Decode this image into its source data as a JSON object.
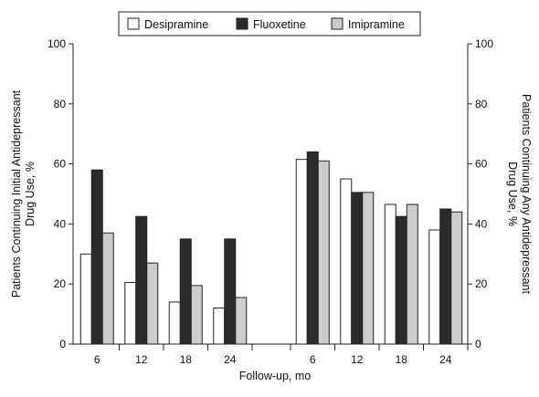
{
  "chart_data": {
    "type": "bar",
    "xlabel": "Follow-up, mo",
    "ylabel_left": [
      "Patients Continuing Initial Antidepressant",
      "Drug Use, %"
    ],
    "ylabel_right": [
      "Patients Continuing Any Antidepressant",
      "Drug Use, %"
    ],
    "ylim": [
      0,
      100
    ],
    "yticks": [
      0,
      20,
      40,
      60,
      80,
      100
    ],
    "legend_position": "top",
    "grid": false,
    "panels": [
      {
        "name": "",
        "categories": [
          "6",
          "12",
          "18",
          "24"
        ],
        "series": [
          {
            "name": "Desipramine",
            "color": "#ffffff",
            "values": [
              30,
              20.5,
              14,
              12
            ]
          },
          {
            "name": "Fluoxetine",
            "color": "#2b2b2b",
            "values": [
              58,
              42.5,
              35,
              35
            ]
          },
          {
            "name": "Imipramine",
            "color": "#cccccc",
            "values": [
              37,
              27,
              19.5,
              15.5
            ]
          }
        ]
      },
      {
        "name": "",
        "categories": [
          "6",
          "12",
          "18",
          "24"
        ],
        "series": [
          {
            "name": "Desipramine",
            "color": "#ffffff",
            "values": [
              61.5,
              55,
              46.5,
              38
            ]
          },
          {
            "name": "Fluoxetine",
            "color": "#2b2b2b",
            "values": [
              64,
              50.5,
              42.5,
              45
            ]
          },
          {
            "name": "Imipramine",
            "color": "#cccccc",
            "values": [
              61,
              50.5,
              46.5,
              44
            ]
          }
        ]
      }
    ],
    "legend": [
      {
        "name": "Desipramine",
        "color": "#ffffff"
      },
      {
        "name": "Fluoxetine",
        "color": "#2b2b2b"
      },
      {
        "name": "Imipramine",
        "color": "#cccccc"
      }
    ]
  }
}
